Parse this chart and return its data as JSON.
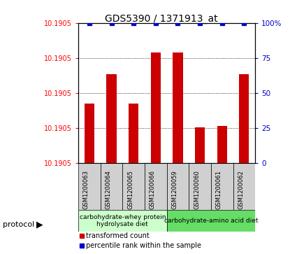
{
  "title": "GDS5390 / 1371913_at",
  "samples": [
    "GSM1200063",
    "GSM1200064",
    "GSM1200065",
    "GSM1200066",
    "GSM1200059",
    "GSM1200060",
    "GSM1200061",
    "GSM1200062"
  ],
  "bar_heights": [
    10.1902,
    10.19055,
    10.1902,
    10.1908,
    10.1908,
    10.18992,
    10.18994,
    10.19055
  ],
  "percentile_values": [
    100,
    100,
    100,
    100,
    100,
    100,
    100,
    100
  ],
  "y_min": 10.1895,
  "y_max": 10.19115,
  "ytick_labels_left": [
    "10.1905",
    "10.1905",
    "10.1905",
    "10.1905",
    "10.1905"
  ],
  "yticks_right": [
    0,
    25,
    50,
    75,
    100
  ],
  "ytick_labels_right": [
    "0",
    "25",
    "50",
    "75",
    "100%"
  ],
  "bar_color": "#cc0000",
  "dot_color": "#0000cc",
  "protocol_groups": [
    {
      "label": "carbohydrate-whey protein\nhydrolysate diet",
      "start": 0,
      "end": 4,
      "color": "#ccffcc"
    },
    {
      "label": "carbohydrate-amino acid diet",
      "start": 4,
      "end": 8,
      "color": "#66dd66"
    }
  ],
  "legend_items": [
    {
      "label": "transformed count",
      "color": "#cc0000"
    },
    {
      "label": "percentile rank within the sample",
      "color": "#0000cc"
    }
  ],
  "protocol_label": "protocol",
  "sample_box_color": "#d0d0d0",
  "background_color": "#ffffff"
}
